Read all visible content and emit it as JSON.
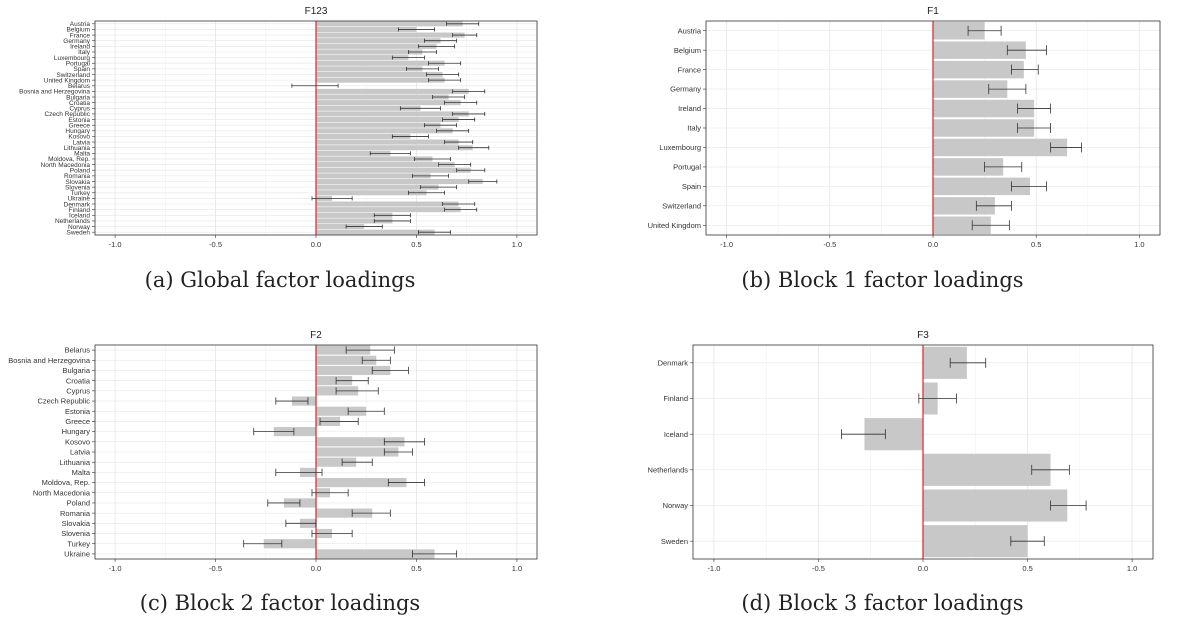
{
  "figures": [
    {
      "id": "a",
      "caption": "(a) Global factor loadings"
    },
    {
      "id": "b",
      "caption": "(b) Block 1 factor loadings"
    },
    {
      "id": "c",
      "caption": "(c) Block 2 factor loadings"
    },
    {
      "id": "d",
      "caption": "(d) Block 3 factor loadings"
    }
  ],
  "colors": {
    "bar": "#c8c8c8",
    "zero_line": "#d62728",
    "error_bar": "#333333",
    "grid": "#e6e6e6",
    "border": "#333333"
  },
  "chart_data": [
    {
      "type": "bar",
      "orientation": "horizontal",
      "title": "F123",
      "xlim": [
        -1.1,
        1.1
      ],
      "xticks": [
        -1.0,
        -0.5,
        0.0,
        0.5,
        1.0
      ],
      "xtick_labels": [
        "-1.0",
        "-0.5",
        "0.0",
        "0.5",
        "1.0"
      ],
      "grid": true,
      "categories": [
        "Austria",
        "Belgium",
        "France",
        "Germany",
        "Ireland",
        "Italy",
        "Luxembourg",
        "Portugal",
        "Spain",
        "Switzerland",
        "United Kingdom",
        "Belarus",
        "Bosnia and Herzegovina",
        "Bulgaria",
        "Croatia",
        "Cyprus",
        "Czech Republic",
        "Estonia",
        "Greece",
        "Hungary",
        "Kosovo",
        "Latvia",
        "Lithuania",
        "Malta",
        "Moldova, Rep.",
        "North Macedonia",
        "Poland",
        "Romania",
        "Slovakia",
        "Slovenia",
        "Turkey",
        "Ukraine",
        "Denmark",
        "Finland",
        "Iceland",
        "Netherlands",
        "Norway",
        "Sweden"
      ],
      "values": [
        0.73,
        0.5,
        0.74,
        0.62,
        0.6,
        0.53,
        0.46,
        0.64,
        0.53,
        0.63,
        0.64,
        0.0,
        0.76,
        0.66,
        0.72,
        0.52,
        0.76,
        0.71,
        0.62,
        0.68,
        0.47,
        0.71,
        0.78,
        0.37,
        0.58,
        0.69,
        0.77,
        0.57,
        0.83,
        0.61,
        0.55,
        0.08,
        0.71,
        0.72,
        0.38,
        0.38,
        0.24,
        0.59
      ],
      "err_low": [
        0.65,
        0.41,
        0.68,
        0.54,
        0.51,
        0.46,
        0.38,
        0.56,
        0.45,
        0.55,
        0.56,
        -0.12,
        0.68,
        0.58,
        0.64,
        0.42,
        0.68,
        0.63,
        0.54,
        0.6,
        0.38,
        0.64,
        0.71,
        0.27,
        0.49,
        0.61,
        0.7,
        0.48,
        0.76,
        0.52,
        0.46,
        -0.02,
        0.63,
        0.64,
        0.29,
        0.29,
        0.15,
        0.51
      ],
      "err_high": [
        0.81,
        0.59,
        0.8,
        0.7,
        0.69,
        0.6,
        0.54,
        0.72,
        0.61,
        0.71,
        0.72,
        0.11,
        0.84,
        0.74,
        0.8,
        0.62,
        0.84,
        0.79,
        0.7,
        0.76,
        0.56,
        0.78,
        0.86,
        0.47,
        0.67,
        0.77,
        0.84,
        0.66,
        0.9,
        0.7,
        0.64,
        0.18,
        0.79,
        0.8,
        0.47,
        0.47,
        0.33,
        0.67
      ]
    },
    {
      "type": "bar",
      "orientation": "horizontal",
      "title": "F1",
      "xlim": [
        -1.1,
        1.1
      ],
      "xticks": [
        -1.0,
        -0.5,
        0.0,
        0.5,
        1.0
      ],
      "xtick_labels": [
        "-1.0",
        "-0.5",
        "0.0",
        "0.5",
        "1.0"
      ],
      "grid": true,
      "categories": [
        "Austria",
        "Belgium",
        "France",
        "Germany",
        "Ireland",
        "Italy",
        "Luxembourg",
        "Portugal",
        "Spain",
        "Switzerland",
        "United Kingdom"
      ],
      "values": [
        0.25,
        0.45,
        0.44,
        0.36,
        0.49,
        0.49,
        0.65,
        0.34,
        0.47,
        0.3,
        0.28
      ],
      "err_low": [
        0.17,
        0.36,
        0.38,
        0.27,
        0.41,
        0.41,
        0.57,
        0.25,
        0.38,
        0.21,
        0.19
      ],
      "err_high": [
        0.33,
        0.55,
        0.51,
        0.45,
        0.57,
        0.57,
        0.72,
        0.43,
        0.55,
        0.38,
        0.37
      ]
    },
    {
      "type": "bar",
      "orientation": "horizontal",
      "title": "F2",
      "xlim": [
        -1.1,
        1.1
      ],
      "xticks": [
        -1.0,
        -0.5,
        0.0,
        0.5,
        1.0
      ],
      "xtick_labels": [
        "-1.0",
        "-0.5",
        "0.0",
        "0.5",
        "1.0"
      ],
      "grid": true,
      "categories": [
        "Belarus",
        "Bosnia and Herzegovina",
        "Bulgaria",
        "Croatia",
        "Cyprus",
        "Czech Republic",
        "Estonia",
        "Greece",
        "Hungary",
        "Kosovo",
        "Latvia",
        "Lithuania",
        "Malta",
        "Moldova, Rep.",
        "North Macedonia",
        "Poland",
        "Romania",
        "Slovakia",
        "Slovenia",
        "Turkey",
        "Ukraine"
      ],
      "values": [
        0.27,
        0.3,
        0.37,
        0.18,
        0.21,
        -0.12,
        0.25,
        0.12,
        -0.21,
        0.44,
        0.41,
        0.2,
        -0.08,
        0.45,
        0.07,
        -0.16,
        0.28,
        -0.08,
        0.08,
        -0.26,
        0.59
      ],
      "err_low": [
        0.15,
        0.23,
        0.28,
        0.1,
        0.1,
        -0.2,
        0.16,
        0.02,
        -0.31,
        0.34,
        0.34,
        0.13,
        -0.2,
        0.36,
        -0.02,
        -0.24,
        0.18,
        -0.15,
        -0.02,
        -0.36,
        0.48
      ],
      "err_high": [
        0.39,
        0.37,
        0.46,
        0.26,
        0.31,
        -0.04,
        0.34,
        0.21,
        -0.11,
        0.54,
        0.48,
        0.28,
        0.03,
        0.54,
        0.16,
        -0.08,
        0.37,
        0.0,
        0.18,
        -0.17,
        0.7
      ]
    },
    {
      "type": "bar",
      "orientation": "horizontal",
      "title": "F3",
      "xlim": [
        -1.1,
        1.1
      ],
      "xticks": [
        -1.0,
        -0.5,
        0.0,
        0.5,
        1.0
      ],
      "xtick_labels": [
        "-1.0",
        "-0.5",
        "0.0",
        "0.5",
        "1.0"
      ],
      "grid": true,
      "categories": [
        "Denmark",
        "Finland",
        "Iceland",
        "Netherlands",
        "Norway",
        "Sweden"
      ],
      "values": [
        0.21,
        0.07,
        -0.28,
        0.61,
        0.69,
        0.5
      ],
      "err_low": [
        0.13,
        -0.02,
        -0.39,
        0.52,
        0.61,
        0.42
      ],
      "err_high": [
        0.3,
        0.16,
        -0.18,
        0.7,
        0.78,
        0.58
      ]
    }
  ]
}
